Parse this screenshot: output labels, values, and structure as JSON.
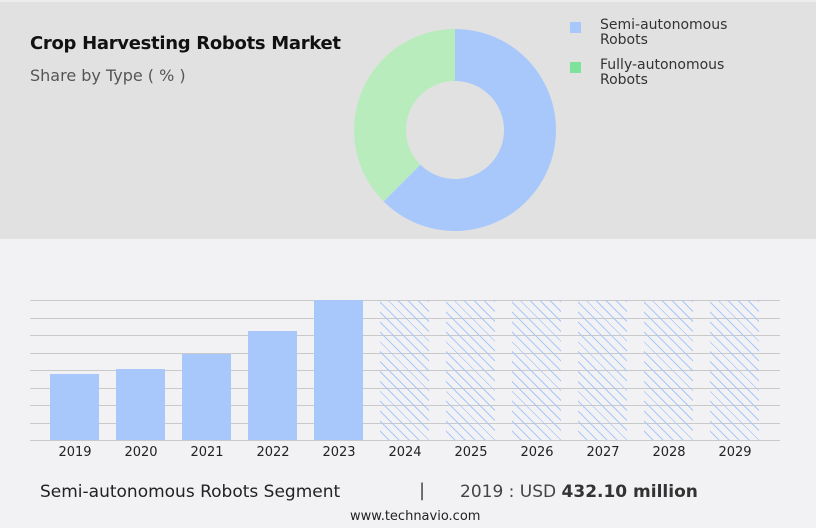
{
  "header": {
    "title": "Crop Harvesting Robots Market",
    "subtitle": "Share by Type ( % )"
  },
  "legend": [
    {
      "label": "Semi-autonomous Robots",
      "color": "#a8c8fc"
    },
    {
      "label": "Fully-autonomous Robots",
      "color": "#7ee39a"
    }
  ],
  "footer": {
    "segment_label": "Semi-autonomous Robots Segment",
    "separator": "|",
    "value_prefix": "2019 : USD ",
    "value_bold": "432.10 million",
    "website": "www.technavio.com"
  },
  "chart_data": [
    {
      "type": "pie",
      "subtype": "donut",
      "title": "Crop Harvesting Robots Market",
      "subtitle": "Share by Type ( % )",
      "categories": [
        "Semi-autonomous Robots",
        "Fully-autonomous Robots"
      ],
      "values": [
        62.5,
        37.5
      ],
      "colors": [
        "#a8c8fc",
        "#b8ecbc"
      ],
      "legend_position": "right"
    },
    {
      "type": "bar",
      "title": "Semi-autonomous Robots Segment",
      "categories": [
        "2019",
        "2020",
        "2021",
        "2022",
        "2023",
        "2024",
        "2025",
        "2026",
        "2027",
        "2028",
        "2029"
      ],
      "values": [
        432.1,
        465,
        563,
        714,
        917,
        null,
        null,
        null,
        null,
        null,
        null
      ],
      "forecast_placeholder": [
        false,
        false,
        false,
        false,
        false,
        true,
        true,
        true,
        true,
        true,
        true
      ],
      "unit": "USD million",
      "annotation": "2019 : USD 432.10 million",
      "xlabel": "",
      "ylabel": "",
      "grid": true,
      "ylim": [
        0,
        917
      ]
    }
  ],
  "bars": [
    {
      "year": "2019",
      "height": 66,
      "forecast": false
    },
    {
      "year": "2020",
      "height": 71,
      "forecast": false
    },
    {
      "year": "2021",
      "height": 86,
      "forecast": false
    },
    {
      "year": "2022",
      "height": 109,
      "forecast": false
    },
    {
      "year": "2023",
      "height": 140,
      "forecast": false
    },
    {
      "year": "2024",
      "height": 140,
      "forecast": true
    },
    {
      "year": "2025",
      "height": 140,
      "forecast": true
    },
    {
      "year": "2026",
      "height": 140,
      "forecast": true
    },
    {
      "year": "2027",
      "height": 140,
      "forecast": true
    },
    {
      "year": "2028",
      "height": 140,
      "forecast": true
    },
    {
      "year": "2029",
      "height": 140,
      "forecast": true
    }
  ]
}
